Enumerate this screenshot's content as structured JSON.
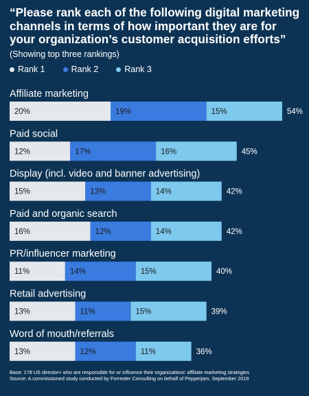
{
  "title": "“Please rank each of the following digital marketing channels in terms of how important they are for your organization’s customer acquisition efforts”",
  "subtitle": "(Showing top three rankings)",
  "colors": {
    "background": "#0d3354",
    "rank1": "#e4e7eb",
    "rank2": "#3a7be0",
    "rank3": "#7ec9ee"
  },
  "chart_data": {
    "type": "bar",
    "orientation": "horizontal",
    "stacked": true,
    "legend_position": "top-left",
    "categories": [
      "Affiliate marketing",
      "Paid social",
      "Display (incl. video and banner advertising)",
      "Paid and organic search",
      "PR/influencer marketing",
      "Retail advertising",
      "Word of mouth/referrals"
    ],
    "series": [
      {
        "name": "Rank 1",
        "values": [
          20,
          12,
          15,
          16,
          11,
          13,
          13
        ]
      },
      {
        "name": "Rank 2",
        "values": [
          19,
          17,
          13,
          12,
          14,
          11,
          12
        ]
      },
      {
        "name": "Rank 3",
        "values": [
          15,
          16,
          14,
          14,
          15,
          15,
          11
        ]
      }
    ],
    "totals": [
      54,
      45,
      42,
      42,
      40,
      39,
      36
    ],
    "value_suffix": "%"
  },
  "footnotes": {
    "base": "Base: 178 US director+ who are responsible for or influence their organizations’ affiliate marketing strategies",
    "source": "Source: A commissioned study conducted by Forrester Consulting on behalf of Pepperjam, September 2019"
  }
}
